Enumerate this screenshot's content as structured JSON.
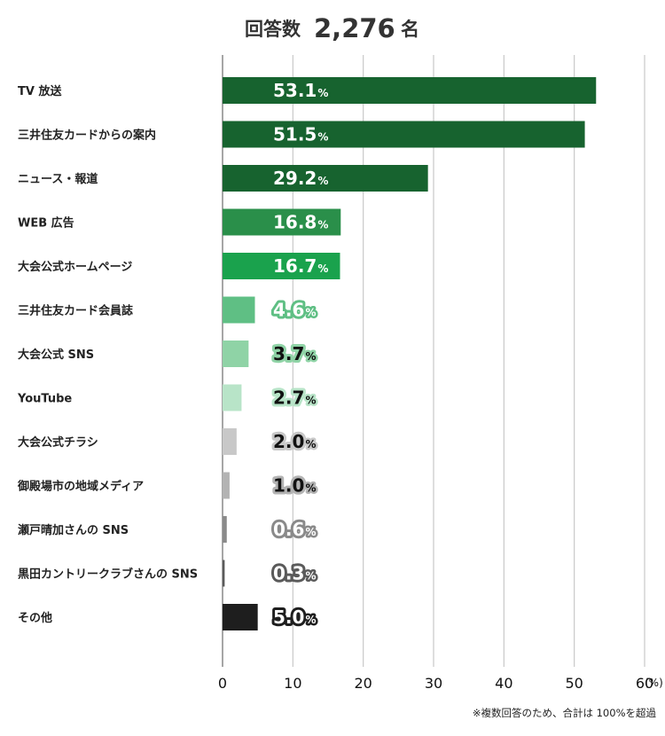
{
  "header": {
    "prefix": "回答数",
    "count": "2,276",
    "suffix": "名"
  },
  "footnote": "※複数回答のため、合計は 100%を超過",
  "chart_data": {
    "type": "bar",
    "orientation": "horizontal",
    "title": "回答数 2,276名",
    "categories": [
      "TV 放送",
      "三井住友カードからの案内",
      "ニュース・報道",
      "WEB 広告",
      "大会公式ホームページ",
      "三井住友カード会員誌",
      "大会公式 SNS",
      "YouTube",
      "大会公式チラシ",
      "御殿場市の地域メディア",
      "瀬戸晴加さんの SNS",
      "黒田カントリークラブさんの SNS",
      "その他"
    ],
    "values": [
      53.1,
      51.5,
      29.2,
      16.8,
      16.7,
      4.6,
      3.7,
      2.7,
      2.0,
      1.0,
      0.6,
      0.3,
      5.0
    ],
    "value_labels": [
      "53.1",
      "51.5",
      "29.2",
      "16.8",
      "16.7",
      "4.6",
      "3.7",
      "2.7",
      "2.0",
      "1.0",
      "0.6",
      "0.3",
      "5.0"
    ],
    "value_suffix": "%",
    "bar_colors": [
      "#17632f",
      "#17632f",
      "#17632f",
      "#2a8f4a",
      "#1aa24d",
      "#5fbf84",
      "#8fd3a6",
      "#b8e4c8",
      "#c8c8c8",
      "#b3b3b3",
      "#8a8a8a",
      "#5a5a5a",
      "#1e1e1e"
    ],
    "label_text_colors": [
      "#ffffff",
      "#ffffff",
      "#ffffff",
      "#ffffff",
      "#ffffff",
      "#ffffff",
      "#111111",
      "#111111",
      "#111111",
      "#111111",
      "#ffffff",
      "#ffffff",
      "#ffffff"
    ],
    "label_outline_colors": [
      "#17632f",
      "#17632f",
      "#17632f",
      "#2a8f4a",
      "#1aa24d",
      "#5fbf84",
      "#8fd3a6",
      "#b8e4c8",
      "#c8c8c8",
      "#b3b3b3",
      "#8a8a8a",
      "#5a5a5a",
      "#1e1e1e"
    ],
    "x_ticks": [
      0,
      10,
      20,
      30,
      40,
      50,
      60
    ],
    "x_tick_labels": [
      "0",
      "10",
      "20",
      "30",
      "40",
      "50",
      "60"
    ],
    "x_unit": "(%)",
    "xlim": [
      0,
      60
    ],
    "grid": true,
    "xlabel": "",
    "ylabel": ""
  }
}
